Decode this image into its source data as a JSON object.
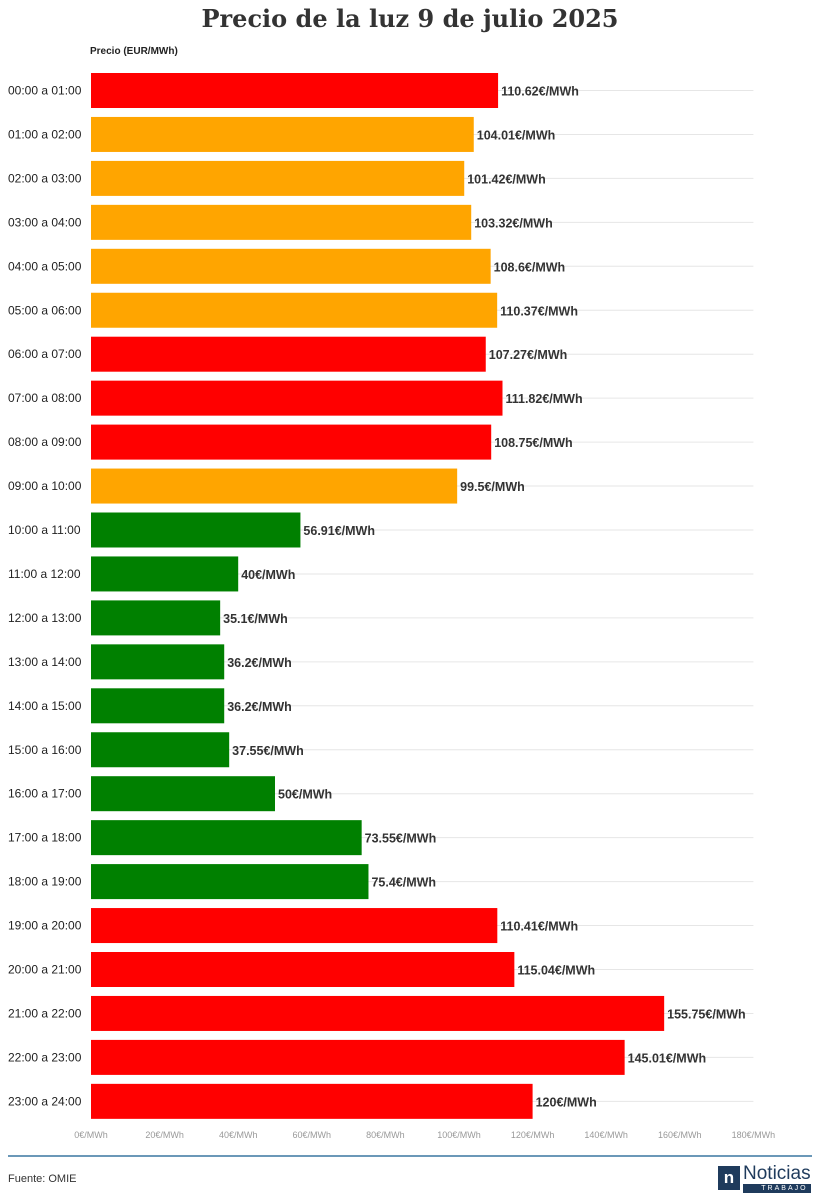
{
  "chart_data": {
    "type": "bar",
    "orientation": "horizontal",
    "title": "Precio de la luz 9 de julio 2025",
    "ylabel": "Precio (EUR/MWh)",
    "xlim": [
      0,
      180
    ],
    "x_ticks": [
      "0€/MWh",
      "20€/MWh",
      "40€/MWh",
      "60€/MWh",
      "80€/MWh",
      "100€/MWh",
      "120€/MWh",
      "140€/MWh",
      "160€/MWh",
      "180€/MWh"
    ],
    "grid": true,
    "categories": [
      "00:00 a 01:00",
      "01:00 a 02:00",
      "02:00 a 03:00",
      "03:00 a 04:00",
      "04:00 a 05:00",
      "05:00 a 06:00",
      "06:00 a 07:00",
      "07:00 a 08:00",
      "08:00 a 09:00",
      "09:00 a 10:00",
      "10:00 a 11:00",
      "11:00 a 12:00",
      "12:00 a 13:00",
      "13:00 a 14:00",
      "14:00 a 15:00",
      "15:00 a 16:00",
      "16:00 a 17:00",
      "17:00 a 18:00",
      "18:00 a 19:00",
      "19:00 a 20:00",
      "20:00 a 21:00",
      "21:00 a 22:00",
      "22:00 a 23:00",
      "23:00 a 24:00"
    ],
    "values": [
      110.62,
      104.01,
      101.42,
      103.32,
      108.6,
      110.37,
      107.27,
      111.82,
      108.75,
      99.5,
      56.91,
      40,
      35.1,
      36.2,
      36.2,
      37.55,
      50,
      73.55,
      75.4,
      110.41,
      115.04,
      155.75,
      145.01,
      120
    ],
    "value_labels": [
      "110.62€/MWh",
      "104.01€/MWh",
      "101.42€/MWh",
      "103.32€/MWh",
      "108.6€/MWh",
      "110.37€/MWh",
      "107.27€/MWh",
      "111.82€/MWh",
      "108.75€/MWh",
      "99.5€/MWh",
      "56.91€/MWh",
      "40€/MWh",
      "35.1€/MWh",
      "36.2€/MWh",
      "36.2€/MWh",
      "37.55€/MWh",
      "50€/MWh",
      "73.55€/MWh",
      "75.4€/MWh",
      "110.41€/MWh",
      "115.04€/MWh",
      "155.75€/MWh",
      "145.01€/MWh",
      "120€/MWh"
    ],
    "bar_levels": [
      "high",
      "mid",
      "mid",
      "mid",
      "mid",
      "mid",
      "high",
      "high",
      "high",
      "mid",
      "low",
      "low",
      "low",
      "low",
      "low",
      "low",
      "low",
      "low",
      "low",
      "high",
      "high",
      "high",
      "high",
      "high"
    ]
  },
  "colors": {
    "high": "#ff0000",
    "mid": "#ffa500",
    "low": "#008000",
    "grid": "#e6e6e6",
    "tick_text": "#999999",
    "footer_rule": "#6b98b8",
    "logo": "#1f3b5c"
  },
  "footer": {
    "source": "Fuente: OMIE",
    "logo_icon": "n",
    "logo_name": "Noticias",
    "logo_sub": "TRABAJO"
  }
}
